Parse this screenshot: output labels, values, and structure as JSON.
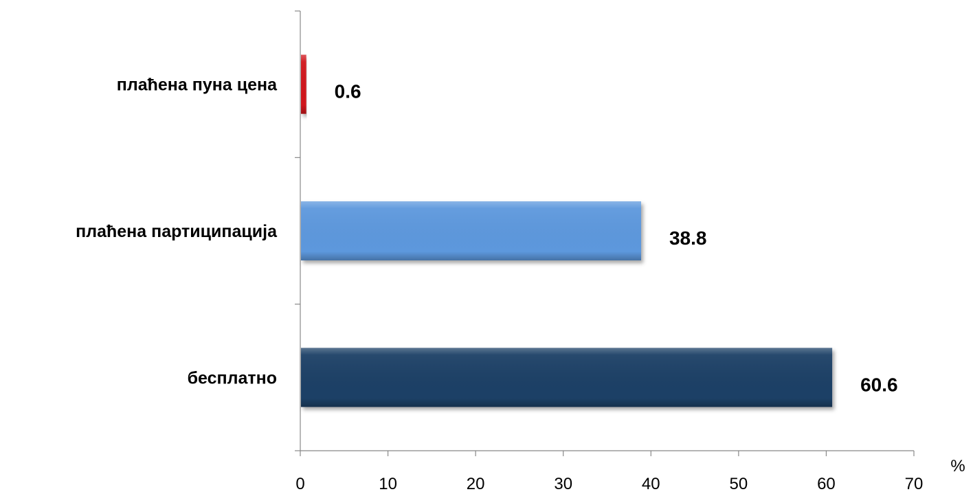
{
  "chart_data": {
    "type": "bar",
    "orientation": "horizontal",
    "unit": "%",
    "categories": [
      "плаћена пуна цена",
      "плаћена партиципација",
      "бесплатно"
    ],
    "values": [
      0.6,
      38.8,
      60.6
    ],
    "value_labels": [
      "0.6",
      "38.8",
      "60.6"
    ],
    "xlim": [
      0,
      70
    ],
    "xticks": [
      0,
      10,
      20,
      30,
      40,
      50,
      60,
      70
    ],
    "grid": false,
    "legend": "none",
    "colors": [
      "#d0191a",
      "#5d98dd",
      "#1f3f66"
    ]
  }
}
